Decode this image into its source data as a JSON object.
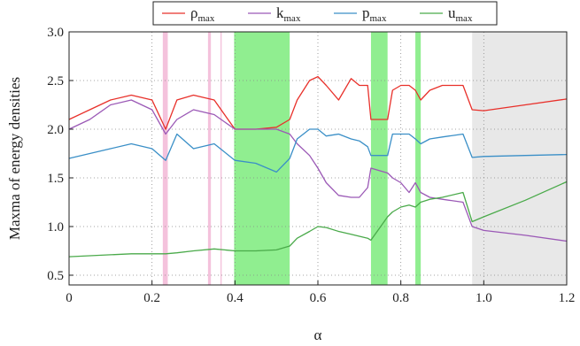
{
  "chart_data": {
    "type": "line",
    "title": "",
    "xlabel": "α",
    "ylabel": "Maxma of energy densities",
    "xlim": [
      0,
      1.2
    ],
    "ylim": [
      0.4,
      3.0
    ],
    "xticks": [
      0,
      0.2,
      0.4,
      0.6,
      0.8,
      1.0,
      1.2
    ],
    "xtick_labels": [
      "0",
      "0.2",
      "0.4",
      "0.6",
      "0.8",
      "1.0",
      "1.2"
    ],
    "yticks": [
      0.5,
      1.0,
      1.5,
      2.0,
      2.5,
      3.0
    ],
    "ytick_labels": [
      "0.5",
      "1.0",
      "1.5",
      "2.0",
      "2.5",
      "3.0"
    ],
    "grid": "dotted",
    "legend_position": "top-center",
    "bands": [
      {
        "x0": 0.226,
        "x1": 0.238,
        "color": "#f4c2dc"
      },
      {
        "x0": 0.335,
        "x1": 0.342,
        "color": "#f4c2dc"
      },
      {
        "x0": 0.365,
        "x1": 0.368,
        "color": "#f4c2dc"
      },
      {
        "x0": 0.398,
        "x1": 0.532,
        "color": "#90ee90"
      },
      {
        "x0": 0.728,
        "x1": 0.768,
        "color": "#90ee90"
      },
      {
        "x0": 0.835,
        "x1": 0.848,
        "color": "#90ee90"
      },
      {
        "x0": 0.972,
        "x1": 1.2,
        "color": "#e8e8e8"
      }
    ],
    "series": [
      {
        "name": "ρ",
        "subscript": "max",
        "color": "#e8302a",
        "x": [
          0.0,
          0.05,
          0.1,
          0.15,
          0.2,
          0.233,
          0.26,
          0.3,
          0.35,
          0.4,
          0.45,
          0.5,
          0.532,
          0.55,
          0.58,
          0.6,
          0.62,
          0.65,
          0.68,
          0.7,
          0.72,
          0.728,
          0.768,
          0.78,
          0.8,
          0.82,
          0.835,
          0.848,
          0.87,
          0.9,
          0.95,
          0.972,
          1.0,
          1.1,
          1.2
        ],
        "values": [
          2.1,
          2.2,
          2.3,
          2.35,
          2.3,
          2.0,
          2.3,
          2.35,
          2.3,
          2.0,
          2.0,
          2.02,
          2.1,
          2.3,
          2.5,
          2.54,
          2.45,
          2.3,
          2.52,
          2.45,
          2.45,
          2.1,
          2.1,
          2.4,
          2.45,
          2.45,
          2.4,
          2.3,
          2.4,
          2.45,
          2.45,
          2.2,
          2.19,
          2.25,
          2.31
        ]
      },
      {
        "name": "k",
        "subscript": "max",
        "color": "#9b59b6",
        "x": [
          0.0,
          0.05,
          0.1,
          0.15,
          0.2,
          0.233,
          0.26,
          0.3,
          0.35,
          0.4,
          0.45,
          0.5,
          0.532,
          0.55,
          0.58,
          0.6,
          0.62,
          0.65,
          0.68,
          0.7,
          0.72,
          0.728,
          0.768,
          0.78,
          0.8,
          0.82,
          0.835,
          0.848,
          0.87,
          0.9,
          0.95,
          0.972,
          1.0,
          1.1,
          1.2
        ],
        "values": [
          2.0,
          2.1,
          2.25,
          2.3,
          2.2,
          1.95,
          2.1,
          2.2,
          2.15,
          2.0,
          2.0,
          2.0,
          1.95,
          1.85,
          1.73,
          1.6,
          1.45,
          1.32,
          1.3,
          1.3,
          1.4,
          1.6,
          1.55,
          1.5,
          1.45,
          1.35,
          1.45,
          1.35,
          1.3,
          1.28,
          1.25,
          1.0,
          0.96,
          0.91,
          0.85
        ]
      },
      {
        "name": "p",
        "subscript": "max",
        "color": "#3a8fc7",
        "x": [
          0.0,
          0.05,
          0.1,
          0.15,
          0.2,
          0.233,
          0.26,
          0.3,
          0.35,
          0.4,
          0.45,
          0.5,
          0.532,
          0.55,
          0.58,
          0.6,
          0.62,
          0.65,
          0.68,
          0.7,
          0.72,
          0.728,
          0.768,
          0.78,
          0.8,
          0.82,
          0.835,
          0.848,
          0.87,
          0.9,
          0.95,
          0.972,
          1.0,
          1.1,
          1.2
        ],
        "values": [
          1.7,
          1.75,
          1.8,
          1.85,
          1.8,
          1.68,
          1.95,
          1.8,
          1.85,
          1.68,
          1.65,
          1.56,
          1.7,
          1.9,
          2.0,
          2.0,
          1.93,
          1.95,
          1.9,
          1.88,
          1.82,
          1.73,
          1.73,
          1.95,
          1.95,
          1.95,
          1.9,
          1.85,
          1.9,
          1.92,
          1.95,
          1.71,
          1.72,
          1.73,
          1.74
        ]
      },
      {
        "name": "u",
        "subscript": "max",
        "color": "#4aaa4a",
        "x": [
          0.0,
          0.05,
          0.1,
          0.15,
          0.2,
          0.233,
          0.26,
          0.3,
          0.35,
          0.4,
          0.45,
          0.5,
          0.532,
          0.55,
          0.58,
          0.6,
          0.62,
          0.65,
          0.68,
          0.7,
          0.72,
          0.728,
          0.768,
          0.78,
          0.8,
          0.82,
          0.835,
          0.848,
          0.87,
          0.9,
          0.95,
          0.972,
          1.0,
          1.1,
          1.2
        ],
        "values": [
          0.69,
          0.7,
          0.71,
          0.72,
          0.72,
          0.72,
          0.73,
          0.75,
          0.77,
          0.75,
          0.75,
          0.76,
          0.8,
          0.88,
          0.95,
          1.0,
          0.99,
          0.95,
          0.92,
          0.9,
          0.88,
          0.86,
          1.1,
          1.15,
          1.2,
          1.22,
          1.2,
          1.25,
          1.28,
          1.3,
          1.35,
          1.05,
          1.1,
          1.27,
          1.46
        ]
      }
    ]
  }
}
